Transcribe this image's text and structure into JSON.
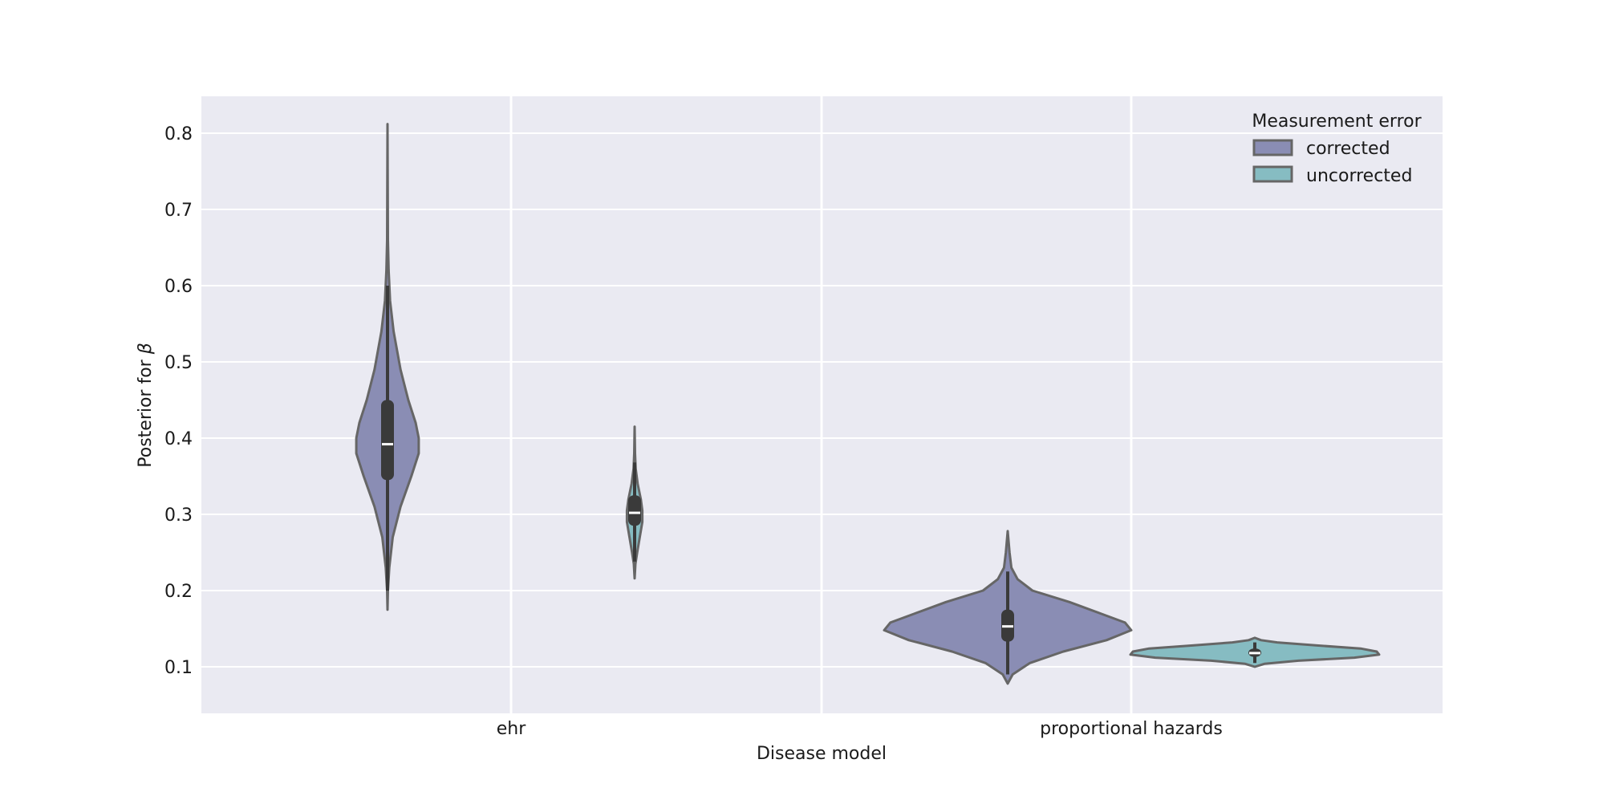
{
  "chart_data": {
    "type": "violin",
    "title": "",
    "xlabel": "Disease model",
    "ylabel_prefix": "Posterior for ",
    "ylabel_symbol": "β",
    "categories": [
      "ehr",
      "proportional hazards"
    ],
    "ylim": [
      0.04,
      0.85
    ],
    "yticks": [
      "0.1",
      "0.2",
      "0.3",
      "0.4",
      "0.5",
      "0.6",
      "0.7",
      "0.8"
    ],
    "grid": true,
    "legend": {
      "title": "Measurement error",
      "placement": "top-right",
      "entries": [
        "corrected",
        "uncorrected"
      ]
    },
    "colors": {
      "corrected": "#8a8db4",
      "uncorrected": "#86bcc2",
      "edge": "#666666",
      "box": "#3a3a3a",
      "median": "#ffffff",
      "panel": "#eaeaf2",
      "grid": "#ffffff"
    },
    "series": [
      {
        "name": "corrected",
        "violins": [
          {
            "category": "ehr",
            "min": 0.175,
            "whisker_low": 0.2,
            "q1": 0.345,
            "median": 0.392,
            "q3": 0.45,
            "whisker_high": 0.6,
            "max": 0.812,
            "profile": [
              [
                0.175,
                0
              ],
              [
                0.2,
                0.01
              ],
              [
                0.23,
                0.04
              ],
              [
                0.27,
                0.12
              ],
              [
                0.31,
                0.3
              ],
              [
                0.35,
                0.55
              ],
              [
                0.38,
                0.72
              ],
              [
                0.4,
                0.72
              ],
              [
                0.42,
                0.65
              ],
              [
                0.45,
                0.48
              ],
              [
                0.49,
                0.3
              ],
              [
                0.54,
                0.14
              ],
              [
                0.58,
                0.06
              ],
              [
                0.62,
                0.025
              ],
              [
                0.66,
                0.01
              ],
              [
                0.72,
                0.006
              ],
              [
                0.812,
                0
              ]
            ]
          },
          {
            "category": "proportional hazards",
            "min": 0.078,
            "whisker_low": 0.09,
            "q1": 0.133,
            "median": 0.153,
            "q3": 0.175,
            "whisker_high": 0.225,
            "max": 0.278,
            "profile": [
              [
                0.078,
                0
              ],
              [
                0.09,
                0.04
              ],
              [
                0.105,
                0.18
              ],
              [
                0.12,
                0.45
              ],
              [
                0.135,
                0.8
              ],
              [
                0.148,
                1.0
              ],
              [
                0.158,
                0.95
              ],
              [
                0.17,
                0.75
              ],
              [
                0.185,
                0.5
              ],
              [
                0.2,
                0.2
              ],
              [
                0.215,
                0.08
              ],
              [
                0.23,
                0.03
              ],
              [
                0.25,
                0.015
              ],
              [
                0.278,
                0
              ]
            ]
          }
        ]
      },
      {
        "name": "uncorrected",
        "violins": [
          {
            "category": "ehr",
            "min": 0.216,
            "whisker_low": 0.238,
            "q1": 0.285,
            "median": 0.302,
            "q3": 0.325,
            "whisker_high": 0.368,
            "max": 0.415,
            "profile": [
              [
                0.216,
                0
              ],
              [
                0.235,
                0.03
              ],
              [
                0.25,
                0.1
              ],
              [
                0.27,
                0.2
              ],
              [
                0.29,
                0.3
              ],
              [
                0.305,
                0.3
              ],
              [
                0.32,
                0.24
              ],
              [
                0.34,
                0.12
              ],
              [
                0.36,
                0.04
              ],
              [
                0.38,
                0.015
              ],
              [
                0.415,
                0
              ]
            ]
          },
          {
            "category": "proportional hazards",
            "min": 0.1,
            "whisker_low": 0.105,
            "q1": 0.113,
            "median": 0.118,
            "q3": 0.124,
            "whisker_high": 0.132,
            "max": 0.138,
            "profile": [
              [
                0.1,
                0
              ],
              [
                0.104,
                0.08
              ],
              [
                0.108,
                0.35
              ],
              [
                0.112,
                0.8
              ],
              [
                0.116,
                1.0
              ],
              [
                0.12,
                0.98
              ],
              [
                0.124,
                0.85
              ],
              [
                0.128,
                0.5
              ],
              [
                0.132,
                0.18
              ],
              [
                0.135,
                0.05
              ],
              [
                0.138,
                0
              ]
            ]
          }
        ]
      }
    ]
  }
}
